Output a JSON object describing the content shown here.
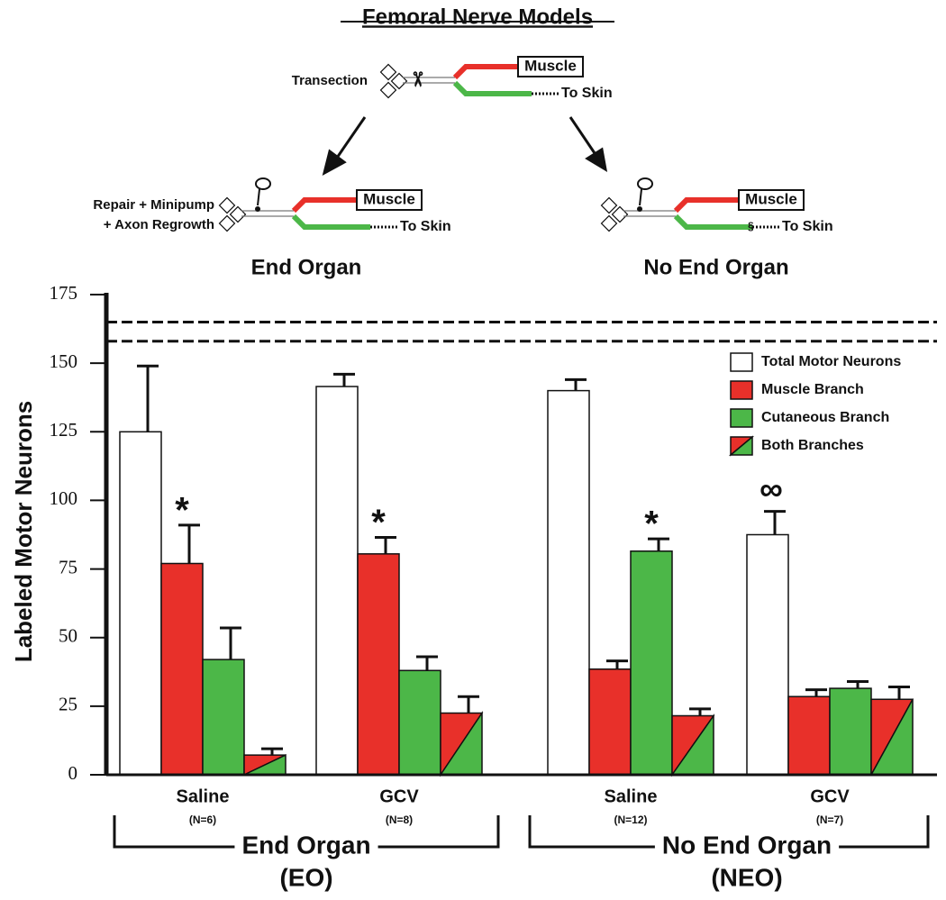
{
  "header": {
    "title": "Femoral Nerve Models"
  },
  "diagram": {
    "transection": {
      "label": "Transection",
      "muscle": "Muscle",
      "skin": "To Skin"
    },
    "repair": {
      "label_lines": [
        "Repair + Minipump",
        "+ Axon Regrowth"
      ],
      "muscle": "Muscle",
      "skin": "To Skin"
    },
    "ligation": {
      "muscle": "Muscle",
      "skin": "To Skin"
    }
  },
  "chart_data": {
    "type": "bar",
    "panel_labels": [
      "End Organ",
      "No End Organ"
    ],
    "y_label": "Labeled Motor Neurons",
    "categories": [
      "Saline",
      "GCV",
      "Saline",
      "GCV"
    ],
    "sample_sizes": [
      "(N=6)",
      "(N=8)",
      "(N=12)",
      "(N=7)"
    ],
    "groups": [
      {
        "label": "End Organ",
        "abbr": "(EO)"
      },
      {
        "label": "No End Organ",
        "abbr": "(NEO)"
      }
    ],
    "ylim": [
      0,
      175
    ],
    "yticks": [
      0,
      25,
      50,
      75,
      100,
      125,
      150,
      175
    ],
    "reference_lines": [
      165,
      158
    ],
    "series": [
      {
        "name": "Total Motor Neurons",
        "color": "#ffffff",
        "values": [
          125,
          141.5,
          140,
          87.5
        ],
        "errors": [
          24,
          4.5,
          4,
          8.5
        ],
        "markers": [
          null,
          null,
          null,
          "∞"
        ]
      },
      {
        "name": "Muscle Branch",
        "color": "#e8302a",
        "values": [
          77,
          80.5,
          38.5,
          28.5
        ],
        "errors": [
          14,
          6,
          3,
          2.5
        ],
        "markers": [
          "*",
          "*",
          null,
          null
        ]
      },
      {
        "name": "Cutaneous Branch",
        "color": "#4cb748",
        "values": [
          42,
          38,
          81.5,
          31.5
        ],
        "errors": [
          11.5,
          5,
          4.5,
          2.5
        ],
        "markers": [
          null,
          null,
          "*",
          null
        ]
      },
      {
        "name": "Both Branches",
        "colors": [
          "#e8302a",
          "#4cb748"
        ],
        "values": [
          7.2,
          22.5,
          21.5,
          27.5
        ],
        "errors": [
          2.3,
          6,
          2.5,
          4.5
        ],
        "markers": [
          null,
          null,
          null,
          null
        ]
      }
    ]
  }
}
